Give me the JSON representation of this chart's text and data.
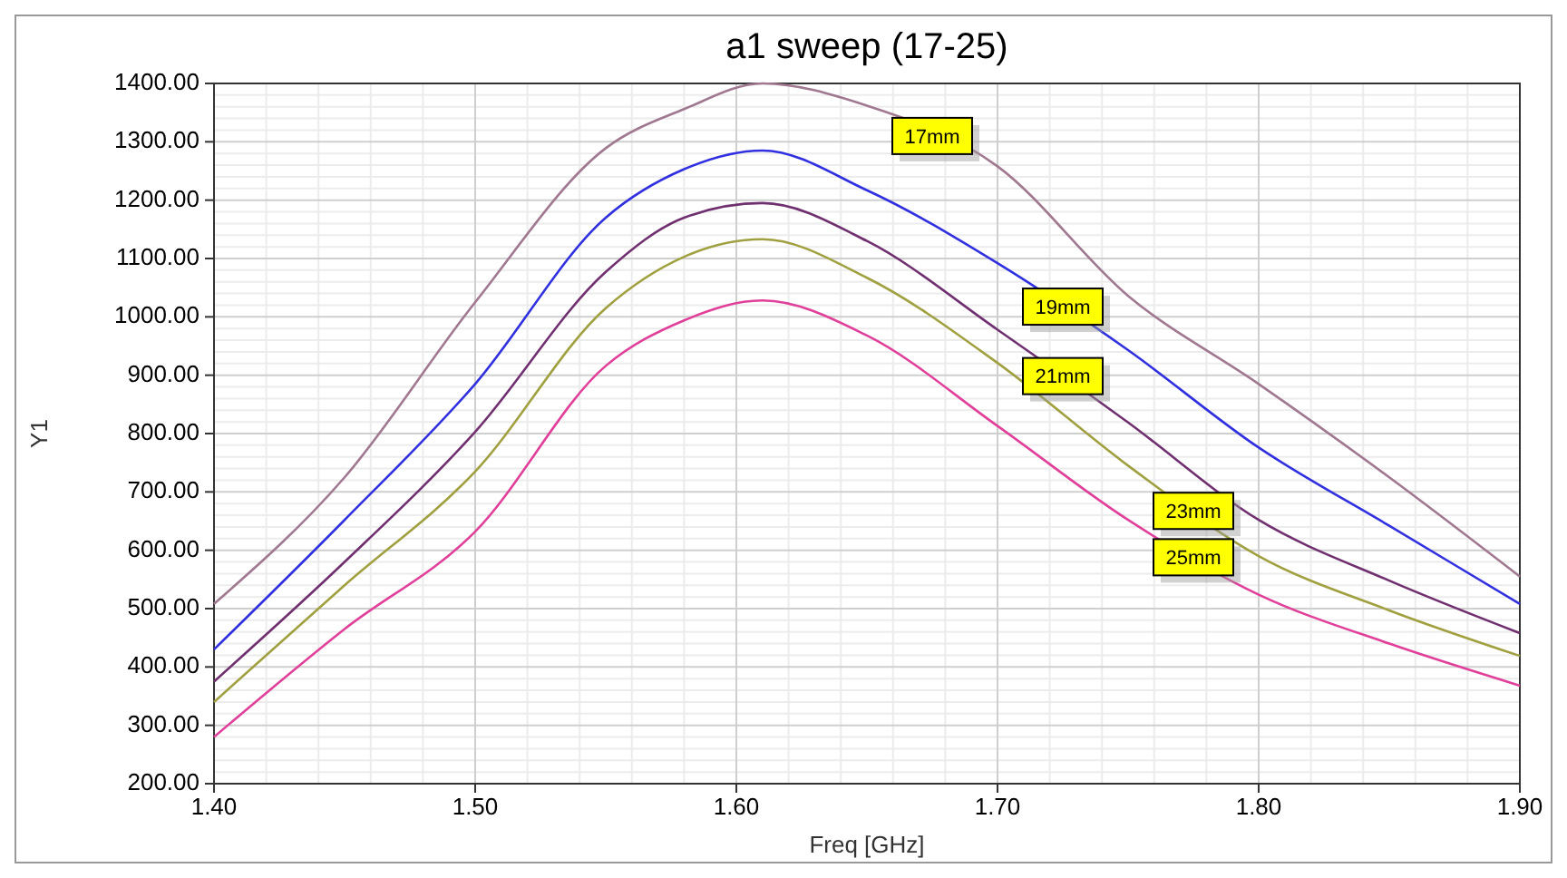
{
  "chart_data": {
    "type": "line",
    "title": "a1 sweep (17-25)",
    "xlabel": "Freq [GHz]",
    "ylabel": "Y1",
    "xlim": [
      1.4,
      1.9
    ],
    "ylim": [
      200,
      1400
    ],
    "xticks": [
      {
        "value": 1.4,
        "label": "1.40"
      },
      {
        "value": 1.5,
        "label": "1.50"
      },
      {
        "value": 1.6,
        "label": "1.60"
      },
      {
        "value": 1.7,
        "label": "1.70"
      },
      {
        "value": 1.8,
        "label": "1.80"
      },
      {
        "value": 1.9,
        "label": "1.90"
      }
    ],
    "yticks": [
      {
        "value": 200,
        "label": "200.00"
      },
      {
        "value": 300,
        "label": "300.00"
      },
      {
        "value": 400,
        "label": "400.00"
      },
      {
        "value": 500,
        "label": "500.00"
      },
      {
        "value": 600,
        "label": "600.00"
      },
      {
        "value": 700,
        "label": "700.00"
      },
      {
        "value": 800,
        "label": "800.00"
      },
      {
        "value": 900,
        "label": "900.00"
      },
      {
        "value": 1000,
        "label": "1000.00"
      },
      {
        "value": 1100,
        "label": "1100.00"
      },
      {
        "value": 1200,
        "label": "1200.00"
      },
      {
        "value": 1300,
        "label": "1300.00"
      },
      {
        "value": 1400,
        "label": "1400.00"
      }
    ],
    "x": [
      1.4,
      1.45,
      1.5,
      1.55,
      1.58,
      1.61,
      1.65,
      1.7,
      1.75,
      1.8,
      1.85,
      1.9
    ],
    "grid": true,
    "legend": false,
    "line_style": "solid",
    "marker": "none",
    "series": [
      {
        "name": "17mm",
        "color": "#a07890",
        "values": [
          508,
          725,
          1025,
          1289,
          1356,
          1400,
          1362,
          1258,
          1036,
          885,
          725,
          555
        ]
      },
      {
        "name": "19mm",
        "color": "#3030e0",
        "values": [
          430,
          652,
          885,
          1170,
          1253,
          1285,
          1217,
          1092,
          943,
          776,
          642,
          508
        ]
      },
      {
        "name": "21mm",
        "color": "#703070",
        "values": [
          375,
          580,
          803,
          1077,
          1170,
          1195,
          1130,
          978,
          819,
          652,
          548,
          458
        ]
      },
      {
        "name": "23mm",
        "color": "#a0a040",
        "values": [
          340,
          540,
          735,
          1015,
          1103,
          1133,
          1067,
          921,
          745,
          590,
          497,
          419
        ]
      },
      {
        "name": "25mm",
        "color": "#e0409a",
        "values": [
          280,
          465,
          632,
          916,
          994,
          1028,
          968,
          813,
          652,
          524,
          440,
          368
        ]
      }
    ]
  }
}
